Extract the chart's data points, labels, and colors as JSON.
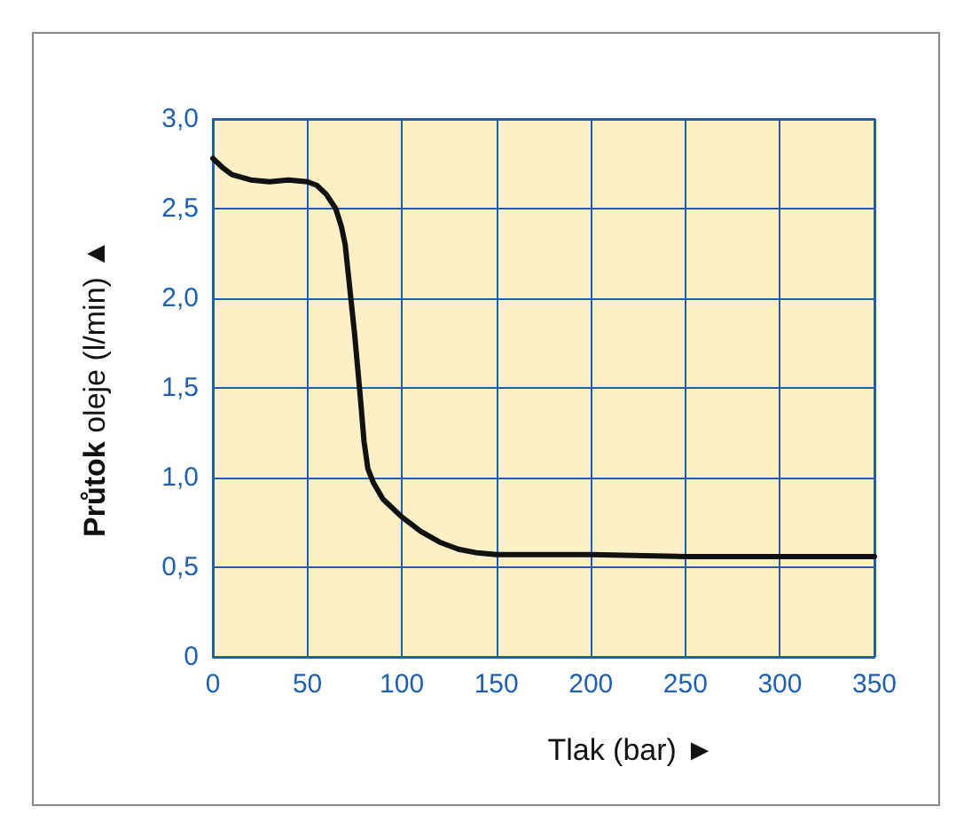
{
  "chart_data": {
    "type": "line",
    "xlabel": "Tlak (bar) ►",
    "ylabel": "Průtok oleje (l/min) ▲",
    "x": [
      0,
      5,
      10,
      20,
      30,
      40,
      50,
      55,
      60,
      65,
      68,
      70,
      72,
      75,
      78,
      80,
      82,
      85,
      90,
      100,
      110,
      120,
      130,
      140,
      150,
      200,
      250,
      300,
      350
    ],
    "series": [
      {
        "color": "#111111",
        "values": [
          2.78,
          2.73,
          2.69,
          2.66,
          2.65,
          2.66,
          2.65,
          2.63,
          2.58,
          2.5,
          2.4,
          2.3,
          2.1,
          1.8,
          1.45,
          1.2,
          1.05,
          0.97,
          0.88,
          0.78,
          0.7,
          0.64,
          0.6,
          0.58,
          0.57,
          0.57,
          0.56,
          0.56,
          0.56
        ]
      }
    ],
    "xlim": [
      0,
      350
    ],
    "xticks": [
      0,
      50,
      100,
      150,
      200,
      250,
      300,
      350
    ],
    "ylim": [
      0,
      3
    ],
    "yticks": [
      0,
      {
        "value": 0.5,
        "label": "0,5"
      },
      {
        "value": 1,
        "label": "1,0"
      },
      {
        "value": 1.5,
        "label": "1,5"
      },
      {
        "value": 2,
        "label": "2,0"
      },
      {
        "value": 2.5,
        "label": "2,5"
      },
      {
        "value": 3,
        "label": "3,0"
      }
    ],
    "grid": true,
    "marker": "none",
    "line_style": "solid"
  }
}
